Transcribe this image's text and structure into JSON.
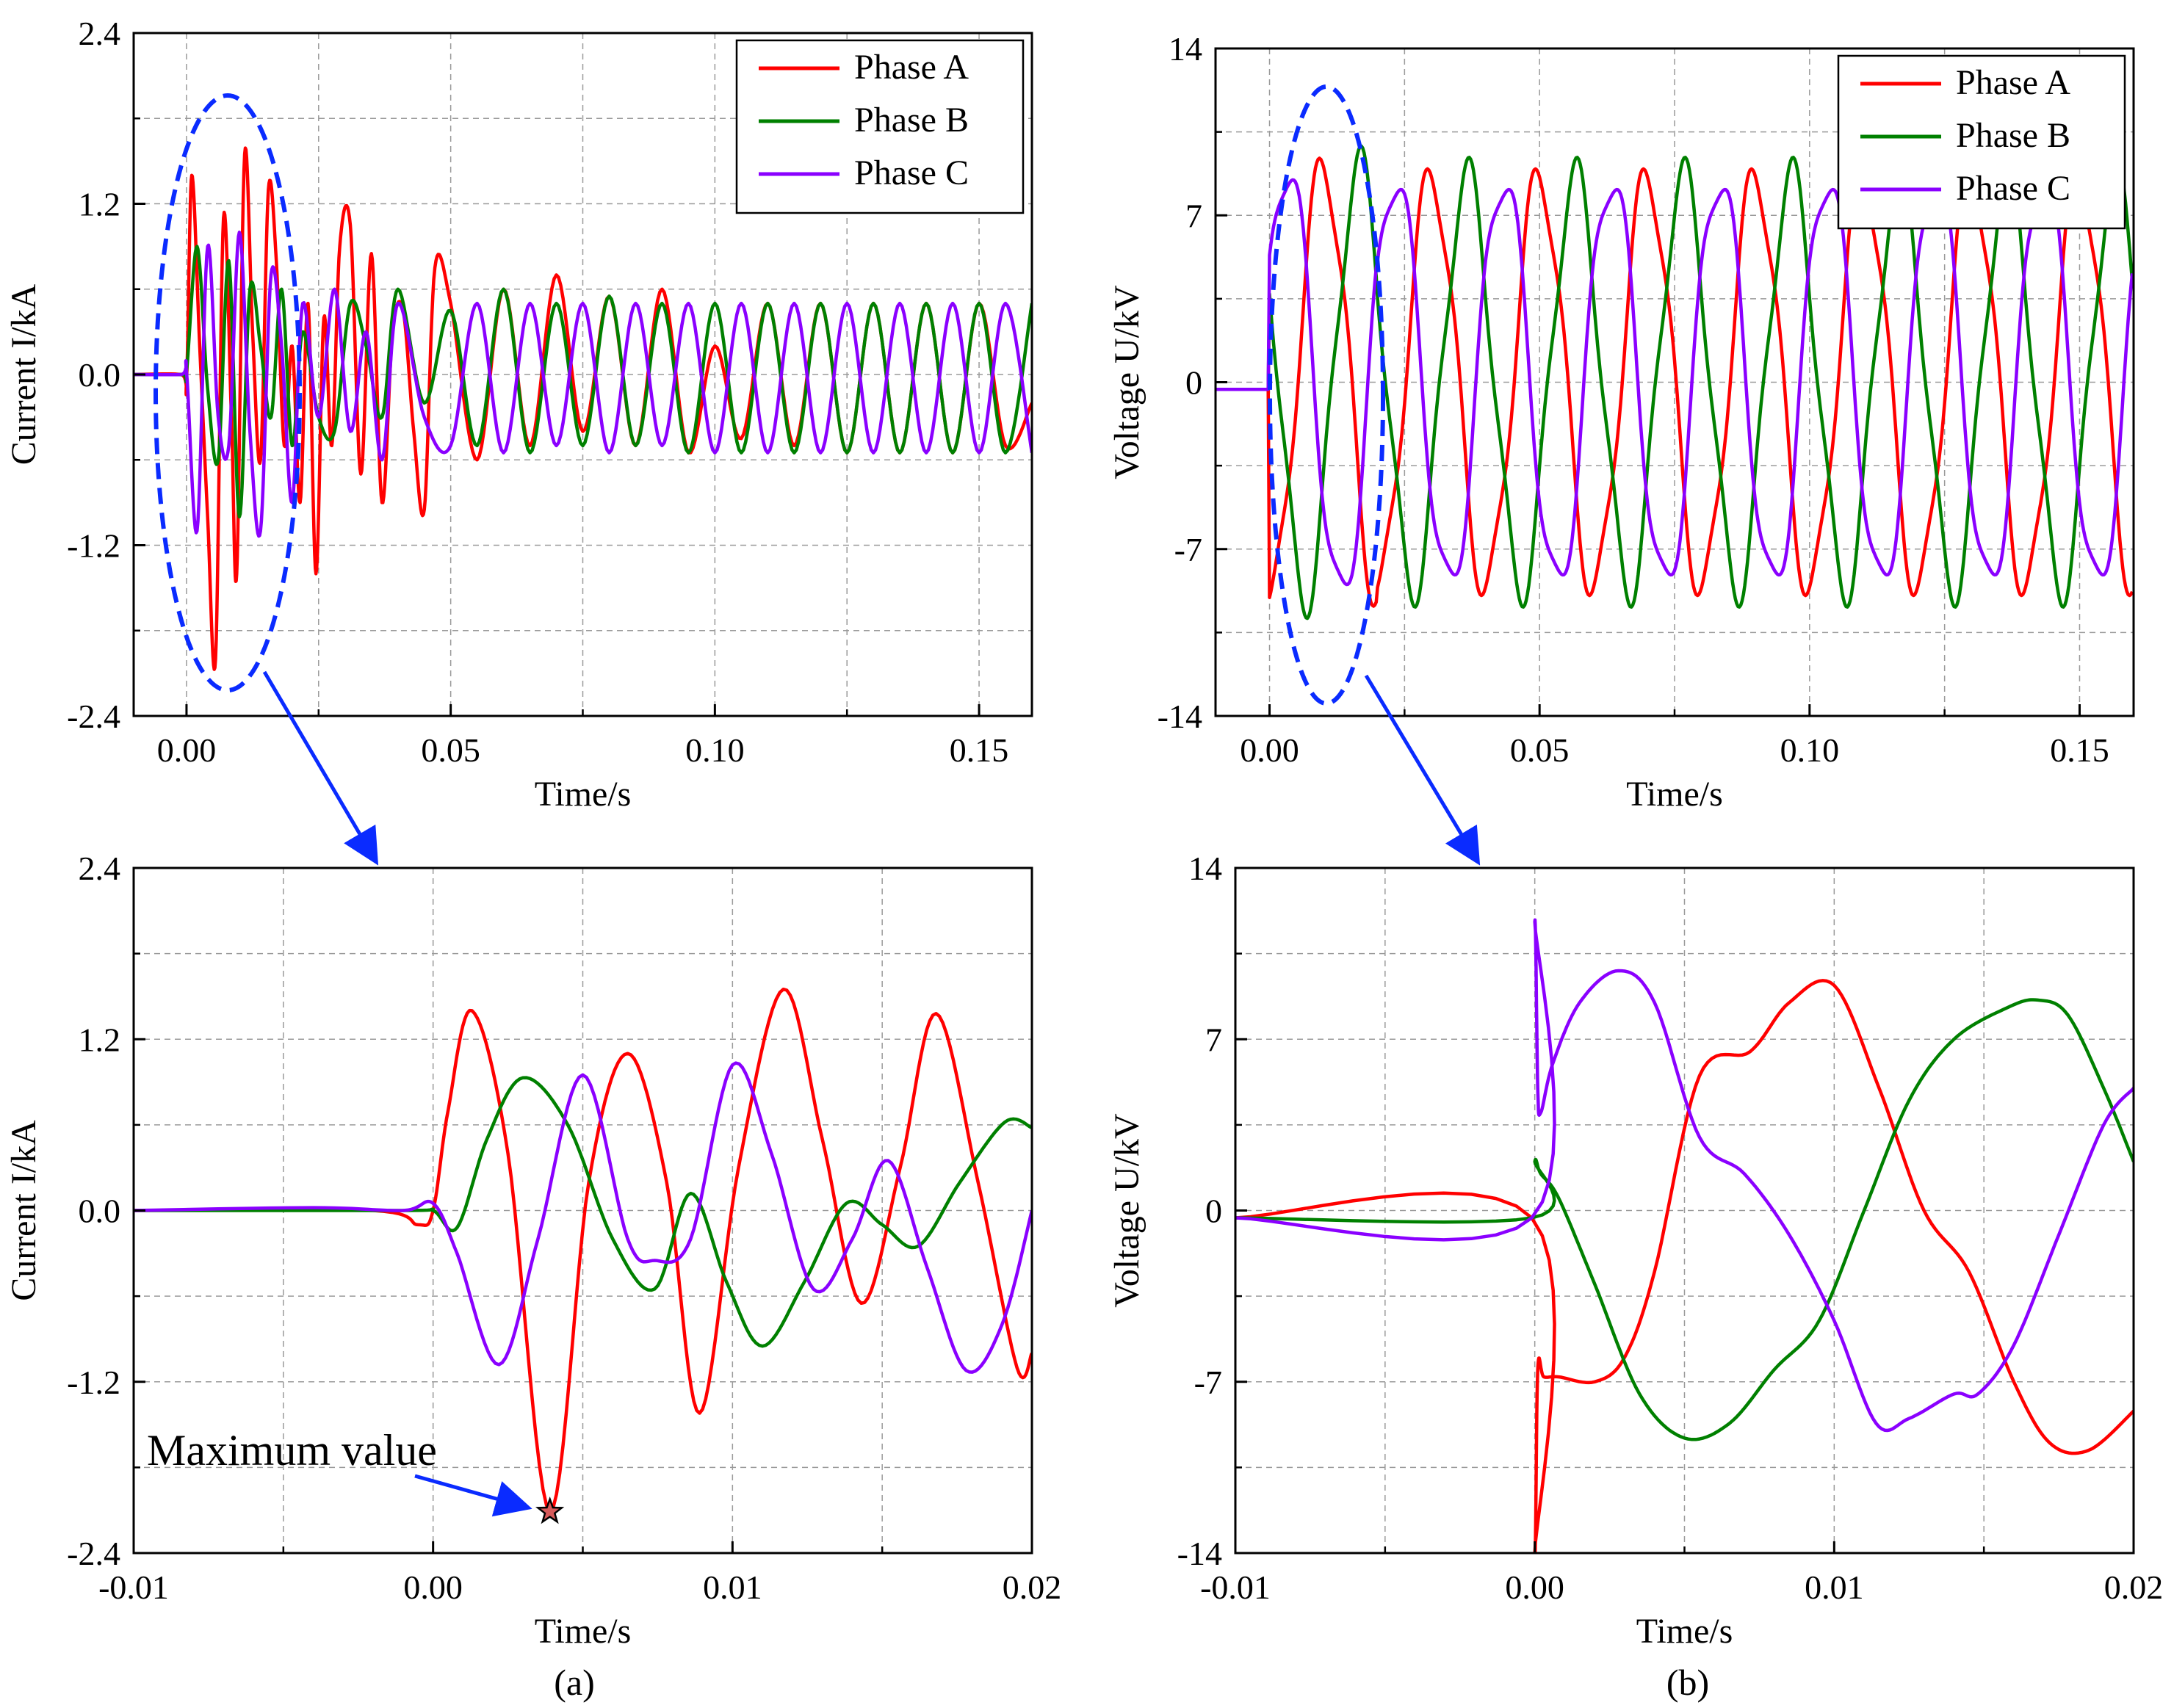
{
  "figure": {
    "captions": [
      "(a)",
      "(b)"
    ],
    "annotation": "Maximum value"
  },
  "colors": {
    "phase_a": "#ff0000",
    "phase_b": "#008000",
    "phase_c": "#8a00ff",
    "ellipse": "#0a2bff",
    "arrow": "#0a2bff",
    "grid": "#9a9a9a"
  },
  "chart_data": [
    {
      "id": "a_top",
      "type": "line",
      "xlabel": "Time/s",
      "ylabel": "Current I/kA",
      "xlim": [
        -0.01,
        0.16
      ],
      "ylim": [
        -2.4,
        2.4
      ],
      "xticks": [
        "0.00",
        "0.05",
        "0.10",
        "0.15"
      ],
      "xtick_values": [
        0,
        0.05,
        0.1,
        0.15
      ],
      "yticks": [
        "-2.4",
        "-1.2",
        "0.0",
        "1.2",
        "2.4"
      ],
      "ytick_values": [
        -2.4,
        -1.2,
        0,
        1.2,
        2.4
      ],
      "legend": [
        "Phase A",
        "Phase B",
        "Phase C"
      ],
      "legend_position": "top-right",
      "series": [
        {
          "name": "Phase A",
          "x": [
            -0.01,
            -0.001,
            0,
            0.001,
            0.0025,
            0.004,
            0.0055,
            0.007,
            0.0085,
            0.0095,
            0.011,
            0.0125,
            0.014,
            0.0155,
            0.017,
            0.0185,
            0.02,
            0.0215,
            0.023,
            0.0245,
            0.026,
            0.0275,
            0.029,
            0.031,
            0.033,
            0.035,
            0.037,
            0.039,
            0.041,
            0.043,
            0.045,
            0.047,
            0.05,
            0.055,
            0.06,
            0.065,
            0.07,
            0.075,
            0.08,
            0.085,
            0.09,
            0.095,
            0.1,
            0.105,
            0.11,
            0.115,
            0.12,
            0.125,
            0.13,
            0.135,
            0.14,
            0.145,
            0.15,
            0.155,
            0.16
          ],
          "values": [
            0,
            0,
            -0.05,
            1.4,
            0.2,
            -1.0,
            -2.0,
            1.1,
            -0.3,
            -1.4,
            1.55,
            0.3,
            -0.6,
            1.3,
            0.8,
            -0.5,
            0.2,
            -0.9,
            0.5,
            -1.4,
            0.4,
            -0.5,
            0.9,
            1.05,
            -0.7,
            0.85,
            -0.9,
            0.3,
            0.45,
            -0.4,
            -0.95,
            0.75,
            0.5,
            -0.6,
            0.6,
            -0.5,
            0.7,
            -0.4,
            0.55,
            -0.5,
            0.6,
            -0.55,
            0.2,
            -0.45,
            0.5,
            -0.5,
            0.5,
            -0.55,
            0.5,
            -0.55,
            0.5,
            -0.55,
            0.5,
            -0.5,
            -0.2
          ]
        },
        {
          "name": "Phase B",
          "x": [
            -0.01,
            -0.001,
            0,
            0.002,
            0.004,
            0.006,
            0.008,
            0.01,
            0.012,
            0.014,
            0.016,
            0.018,
            0.02,
            0.022,
            0.025,
            0.028,
            0.031,
            0.034,
            0.037,
            0.04,
            0.045,
            0.05,
            0.055,
            0.06,
            0.065,
            0.07,
            0.075,
            0.08,
            0.085,
            0.09,
            0.095,
            0.1,
            0.105,
            0.11,
            0.115,
            0.12,
            0.125,
            0.13,
            0.135,
            0.14,
            0.145,
            0.15,
            0.155,
            0.16
          ],
          "values": [
            0,
            0,
            0.02,
            0.9,
            -0.1,
            -0.6,
            0.8,
            -1.0,
            0.6,
            0.2,
            -0.3,
            0.6,
            -0.5,
            0.3,
            -0.3,
            -0.4,
            0.5,
            0.2,
            -0.3,
            0.6,
            -0.2,
            0.45,
            -0.5,
            0.6,
            -0.55,
            0.5,
            -0.5,
            0.55,
            -0.5,
            0.5,
            -0.55,
            0.5,
            -0.55,
            0.5,
            -0.55,
            0.5,
            -0.55,
            0.5,
            -0.55,
            0.5,
            -0.55,
            0.5,
            -0.55,
            0.5
          ]
        },
        {
          "name": "Phase C",
          "x": [
            -0.01,
            -0.001,
            0,
            0.002,
            0.004,
            0.006,
            0.008,
            0.01,
            0.012,
            0.014,
            0.016,
            0.018,
            0.02,
            0.022,
            0.025,
            0.028,
            0.031,
            0.034,
            0.037,
            0.04,
            0.045,
            0.05,
            0.055,
            0.06,
            0.065,
            0.07,
            0.075,
            0.08,
            0.085,
            0.09,
            0.095,
            0.1,
            0.105,
            0.11,
            0.115,
            0.12,
            0.125,
            0.13,
            0.135,
            0.14,
            0.145,
            0.15,
            0.155,
            0.16
          ],
          "values": [
            0,
            0,
            0.02,
            -1.1,
            0.9,
            -0.3,
            -0.5,
            1.0,
            -0.4,
            -1.1,
            0.7,
            0.2,
            -0.9,
            0.5,
            -0.3,
            0.6,
            -0.4,
            0.3,
            -0.6,
            0.5,
            -0.3,
            -0.5,
            0.5,
            -0.55,
            0.5,
            -0.5,
            0.5,
            -0.55,
            0.5,
            -0.5,
            0.5,
            -0.55,
            0.5,
            -0.55,
            0.5,
            -0.55,
            0.5,
            -0.55,
            0.5,
            -0.55,
            0.5,
            -0.55,
            0.5,
            -0.55
          ]
        }
      ]
    },
    {
      "id": "b_top",
      "type": "line",
      "xlabel": "Time/s",
      "ylabel": "Voltage U/kV",
      "xlim": [
        -0.01,
        0.16
      ],
      "ylim": [
        -14,
        14
      ],
      "xticks": [
        "0.00",
        "0.05",
        "0.10",
        "0.15"
      ],
      "xtick_values": [
        0,
        0.05,
        0.1,
        0.15
      ],
      "yticks": [
        "-14",
        "-7",
        "0",
        "7",
        "14"
      ],
      "ytick_values": [
        -14,
        -7,
        0,
        7,
        14
      ],
      "legend": [
        "Phase A",
        "Phase B",
        "Phase C"
      ],
      "legend_position": "top-right",
      "series": [
        {
          "name": "Phase A",
          "phase_deg": 0,
          "amplitude": 9
        },
        {
          "name": "Phase B",
          "phase_deg": 240,
          "amplitude": 9
        },
        {
          "name": "Phase C",
          "phase_deg": 120,
          "amplitude": 9
        }
      ]
    },
    {
      "id": "a_zoom",
      "type": "line",
      "xlabel": "Time/s",
      "ylabel": "Current I/kA",
      "xlim": [
        -0.01,
        0.02
      ],
      "ylim": [
        -2.4,
        2.4
      ],
      "xticks": [
        "-0.01",
        "0.00",
        "0.01",
        "0.02"
      ],
      "xtick_values": [
        -0.01,
        0,
        0.01,
        0.02
      ],
      "yticks": [
        "-2.4",
        "-1.2",
        "0.0",
        "1.2",
        "2.4"
      ],
      "ytick_values": [
        -2.4,
        -1.2,
        0,
        1.2,
        2.4
      ],
      "annotation_point": {
        "x": 0.0039,
        "y": -2.11
      },
      "series": [
        {
          "name": "Phase A",
          "x": [
            -0.01,
            -0.002,
            -0.0005,
            0,
            0.0005,
            0.0013,
            0.0025,
            0.0039,
            0.0052,
            0.0065,
            0.0078,
            0.0089,
            0.0102,
            0.0117,
            0.013,
            0.0143,
            0.0156,
            0.0168,
            0.0182,
            0.0195,
            0.02
          ],
          "values": [
            0,
            0,
            -0.1,
            0,
            0.7,
            1.4,
            0.4,
            -2.11,
            0.2,
            1.1,
            0.2,
            -1.42,
            0.3,
            1.55,
            0.5,
            -0.65,
            0.3,
            1.38,
            0.2,
            -1.1,
            -1.0
          ]
        },
        {
          "name": "Phase B",
          "x": [
            -0.01,
            -0.001,
            0,
            0.0008,
            0.0018,
            0.003,
            0.0045,
            0.006,
            0.0074,
            0.0086,
            0.0098,
            0.011,
            0.0124,
            0.0138,
            0.015,
            0.0162,
            0.0176,
            0.0191,
            0.02
          ],
          "values": [
            0,
            0,
            0,
            -0.12,
            0.5,
            0.93,
            0.6,
            -0.2,
            -0.55,
            0.12,
            -0.5,
            -0.95,
            -0.5,
            0.05,
            -0.1,
            -0.25,
            0.2,
            0.62,
            0.58
          ]
        },
        {
          "name": "Phase C",
          "x": [
            -0.01,
            -0.004,
            -0.001,
            0,
            0.0008,
            0.0022,
            0.0035,
            0.005,
            0.0065,
            0.0074,
            0.0086,
            0.01,
            0.0113,
            0.0127,
            0.014,
            0.0152,
            0.0165,
            0.0178,
            0.019,
            0.02
          ],
          "values": [
            0,
            0.02,
            0,
            0.05,
            -0.3,
            -1.08,
            -0.2,
            0.95,
            -0.2,
            -0.35,
            -0.2,
            1.02,
            0.4,
            -0.55,
            -0.2,
            0.35,
            -0.4,
            -1.12,
            -0.8,
            0.0
          ]
        }
      ]
    },
    {
      "id": "b_zoom",
      "type": "line",
      "xlabel": "Time/s",
      "ylabel": "Voltage U/kV",
      "xlim": [
        -0.01,
        0.02
      ],
      "ylim": [
        -14,
        14
      ],
      "xticks": [
        "-0.01",
        "0.00",
        "0.01",
        "0.02"
      ],
      "xtick_values": [
        -0.01,
        0,
        0.01,
        0.02
      ],
      "yticks": [
        "-14",
        "-7",
        "0",
        "7",
        "14"
      ],
      "ytick_values": [
        -14,
        -7,
        0,
        7,
        14
      ],
      "series": [
        {
          "name": "Phase A",
          "x": [
            -0.01,
            -0.0001,
            0,
            0.0001,
            0.0003,
            0.0008,
            0.002,
            0.003,
            0.004,
            0.0055,
            0.0072,
            0.0085,
            0.01,
            0.0115,
            0.013,
            0.0145,
            0.016,
            0.0172,
            0.0185,
            0.02
          ],
          "values": [
            -0.3,
            -0.3,
            -14,
            -6.5,
            -6.8,
            -6.8,
            -7,
            -6,
            -2.5,
            5.5,
            6.5,
            8.5,
            9.2,
            5,
            0,
            -2.5,
            -7,
            -9.5,
            -9.8,
            -8.2
          ]
        },
        {
          "name": "Phase B",
          "x": [
            -0.01,
            -0.0001,
            0,
            0.0002,
            0.0008,
            0.002,
            0.0035,
            0.005,
            0.0065,
            0.008,
            0.0095,
            0.011,
            0.0125,
            0.014,
            0.0158,
            0.0168,
            0.0178,
            0.019,
            0.02
          ],
          "values": [
            -0.3,
            -0.3,
            2,
            1.5,
            0.5,
            -3,
            -7.5,
            -9.3,
            -8.7,
            -6.5,
            -4.5,
            0,
            4.5,
            7,
            8.3,
            8.6,
            8,
            5,
            2
          ]
        },
        {
          "name": "Phase C",
          "x": [
            -0.01,
            -0.0001,
            0,
            0.0001,
            0.0002,
            0.0006,
            0.0015,
            0.0028,
            0.004,
            0.0055,
            0.007,
            0.0085,
            0.01,
            0.0114,
            0.0125,
            0.014,
            0.0148,
            0.016,
            0.0175,
            0.019,
            0.02
          ],
          "values": [
            -0.3,
            -0.3,
            11.8,
            5,
            4,
            6,
            8.5,
            9.8,
            8.5,
            3,
            1.5,
            -1,
            -4.5,
            -8.7,
            -8.5,
            -7.5,
            -7.5,
            -5.5,
            -1,
            3.5,
            5
          ]
        }
      ]
    }
  ]
}
